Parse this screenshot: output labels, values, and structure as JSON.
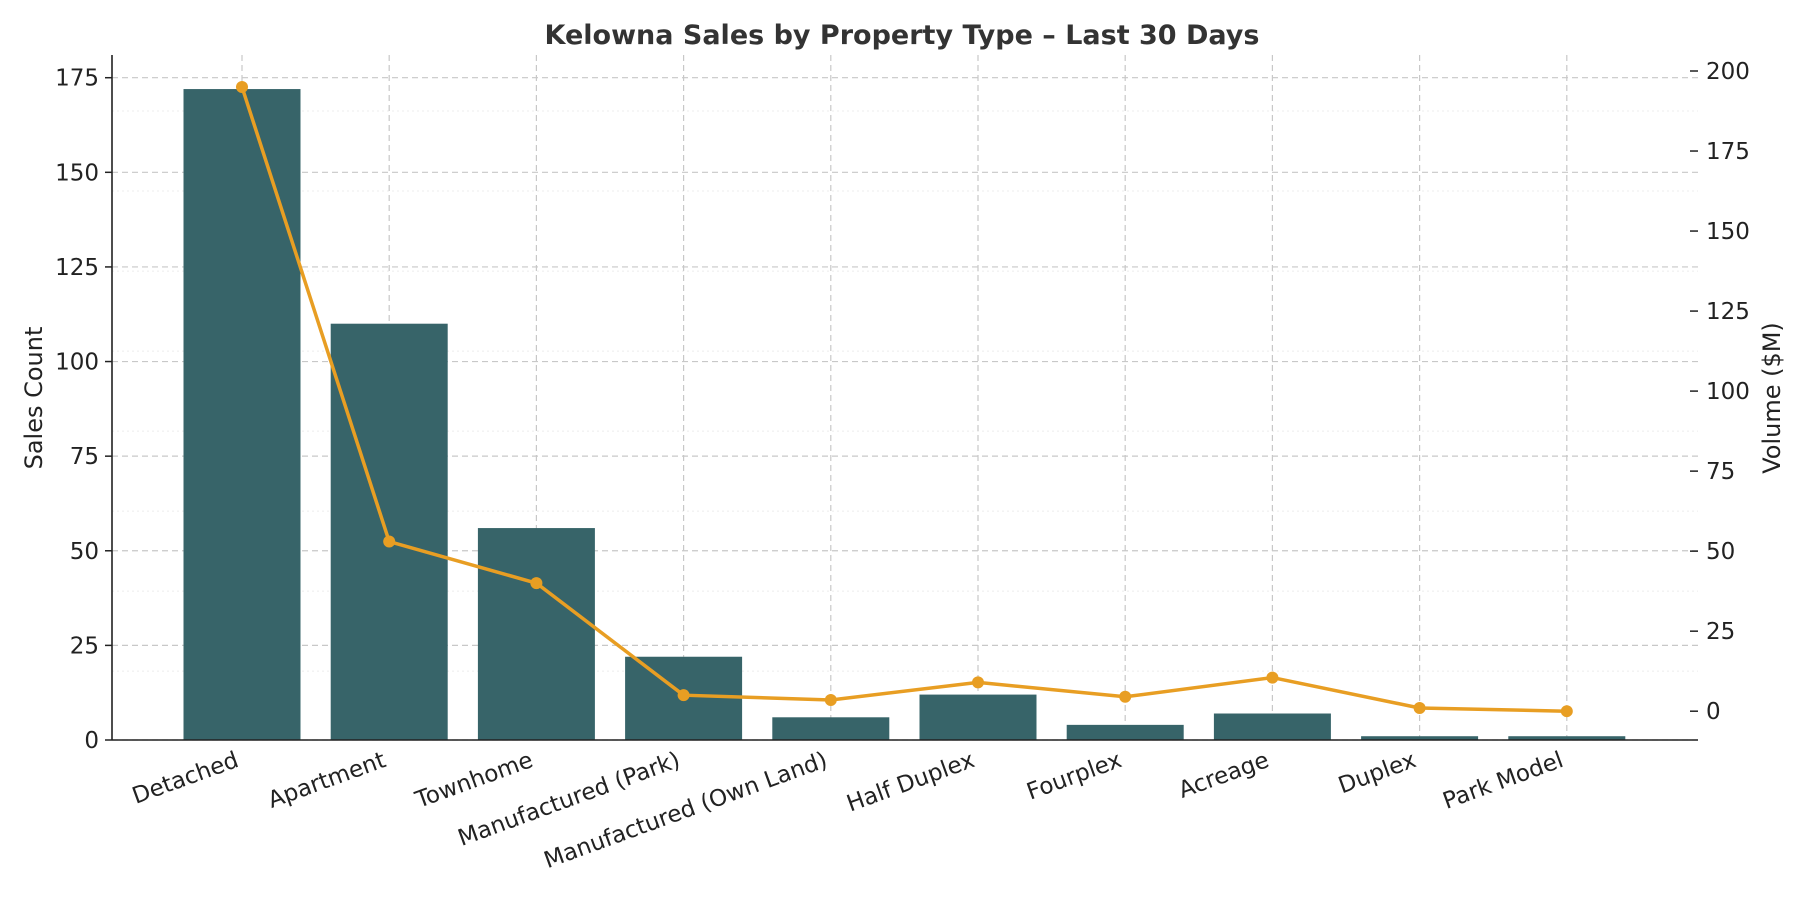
{
  "chart_data": {
    "type": "bar",
    "title": "Kelowna Sales by Property Type – Last 30 Days",
    "categories": [
      "Detached",
      "Apartment",
      "Townhome",
      "Manufactured (Park)",
      "Manufactured (Own Land)",
      "Half Duplex",
      "Fourplex",
      "Acreage",
      "Duplex",
      "Park Model"
    ],
    "ylabel": "Sales Count",
    "y2label": "Volume ($M)",
    "ylim": [
      0,
      181
    ],
    "y2lim": [
      -9,
      205
    ],
    "yticks": [
      0,
      25,
      50,
      75,
      100,
      125,
      150,
      175
    ],
    "y2ticks": [
      0,
      25,
      50,
      75,
      100,
      125,
      150,
      175,
      200
    ],
    "grid": true,
    "legend": "none",
    "colors": {
      "bar": "#376469",
      "line": "#e89e23"
    },
    "series": [
      {
        "type": "bar",
        "axis": "left",
        "values": [
          172,
          110,
          56,
          22,
          6,
          12,
          4,
          7,
          1,
          1
        ]
      },
      {
        "type": "line",
        "axis": "right",
        "values": [
          195,
          53,
          40,
          5,
          3.5,
          9,
          4.5,
          10.5,
          1,
          0
        ]
      }
    ]
  }
}
